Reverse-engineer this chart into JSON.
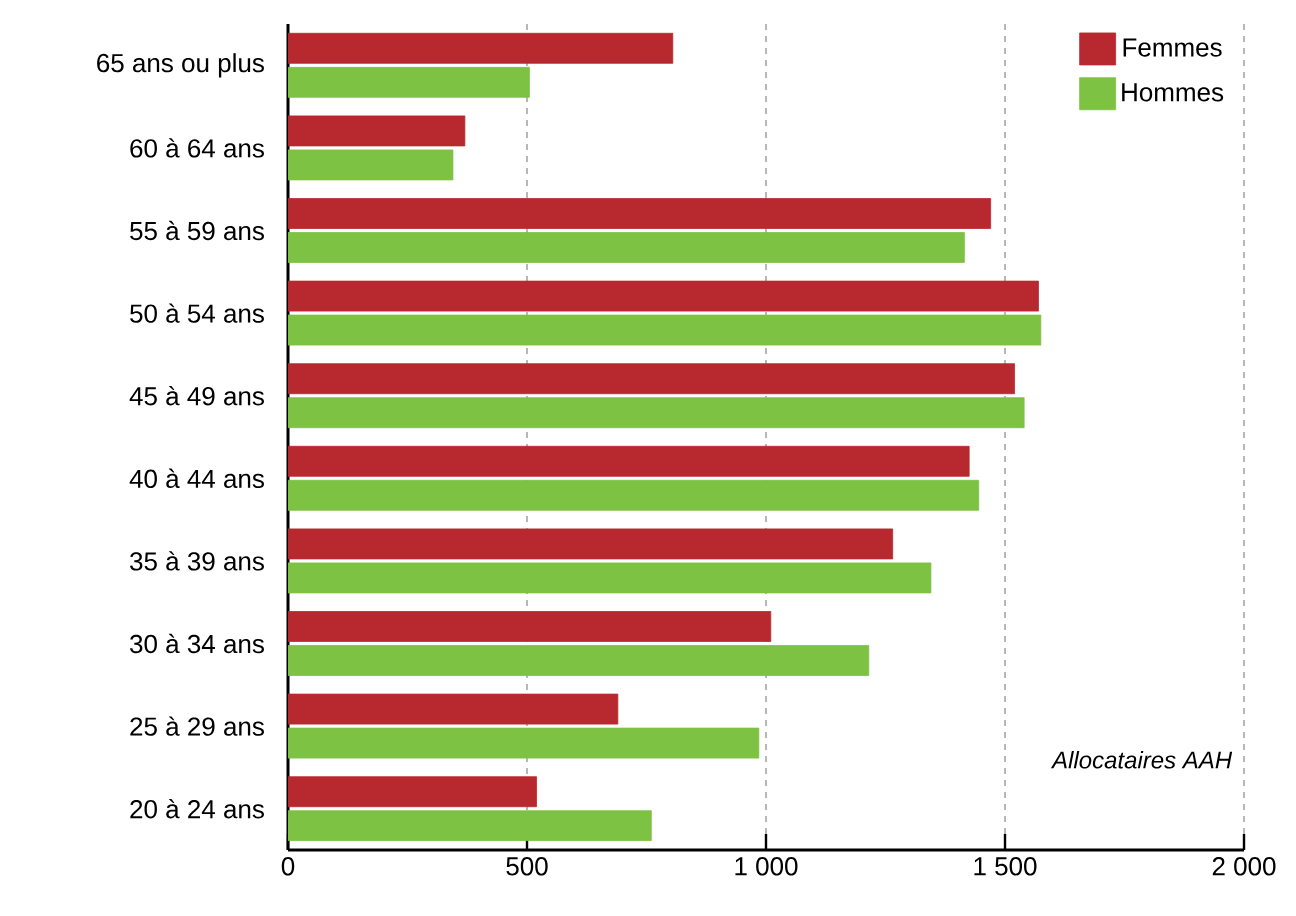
{
  "chart_data": {
    "type": "bar",
    "orientation": "horizontal",
    "categories": [
      "65 ans ou plus",
      "60 à 64 ans",
      "55 à 59 ans",
      "50 à 54 ans",
      "45 à 49 ans",
      "40 à 44 ans",
      "35 à 39 ans",
      "30 à 34 ans",
      "25 à 29 ans",
      "20 à 24 ans"
    ],
    "series": [
      {
        "name": "Femmes",
        "color": "#b8292f",
        "values": [
          805,
          370,
          1470,
          1570,
          1520,
          1425,
          1265,
          1010,
          690,
          520
        ]
      },
      {
        "name": "Hommes",
        "color": "#7dc242",
        "values": [
          505,
          345,
          1415,
          1575,
          1540,
          1445,
          1345,
          1215,
          985,
          760
        ]
      }
    ],
    "xlim": [
      0,
      2000
    ],
    "xticks": [
      0,
      500,
      {
        "value": 1000,
        "label": "1 000"
      },
      {
        "value": 1500,
        "label": "1 500"
      },
      {
        "value": 2000,
        "label": "2 000"
      }
    ],
    "grid": "x",
    "legend": "top right",
    "annotations": [
      "Allocataires AAH"
    ]
  }
}
